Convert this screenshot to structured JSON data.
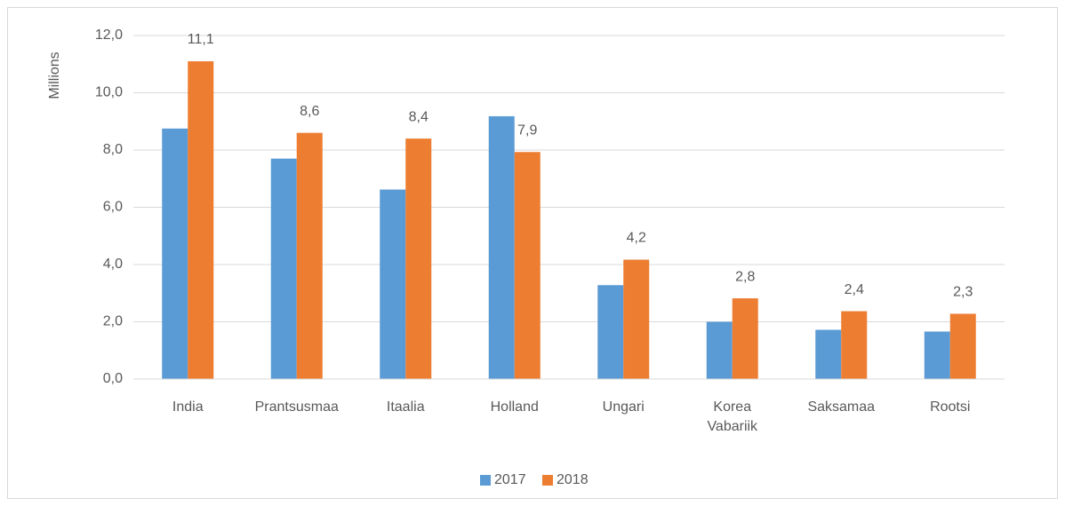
{
  "chart_data": {
    "type": "bar",
    "y_label": "Millions",
    "categories": [
      "India",
      "Prantsusmaa",
      "Itaalia",
      "Holland",
      "Ungari",
      "Korea Vabariik",
      "Saksamaa",
      "Rootsi"
    ],
    "series": [
      {
        "name": "2017",
        "color": "#5b9bd5",
        "values": [
          8.75,
          7.7,
          6.62,
          9.18,
          3.28,
          2.0,
          1.72,
          1.66
        ]
      },
      {
        "name": "2018",
        "color": "#ed7d31",
        "values": [
          11.1,
          8.6,
          8.4,
          7.93,
          4.17,
          2.82,
          2.37,
          2.28
        ],
        "value_labels": [
          "11,1",
          "8,6",
          "8,4",
          "7,9",
          "4,2",
          "2,8",
          "2,4",
          "2,3"
        ]
      }
    ],
    "ylim": [
      0,
      12
    ],
    "yticks": [
      {
        "value": 0,
        "label": "0,0"
      },
      {
        "value": 2,
        "label": "2,0"
      },
      {
        "value": 4,
        "label": "4,0"
      },
      {
        "value": 6,
        "label": "6,0"
      },
      {
        "value": 8,
        "label": "8,0"
      },
      {
        "value": 10,
        "label": "10,0"
      },
      {
        "value": 12,
        "label": "12,0"
      }
    ],
    "grid": true,
    "legend": "bottom"
  }
}
